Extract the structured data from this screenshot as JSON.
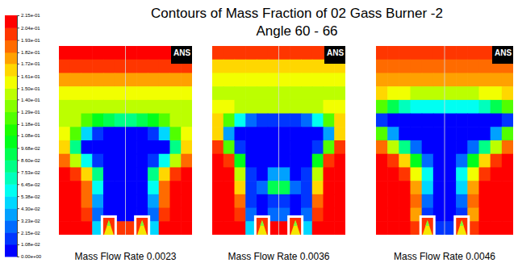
{
  "chart_data": {
    "type": "heatmap",
    "title": "Contours of Mass Fraction of 02 Gass Burner -2",
    "subtitle": "Angle 60 - 66",
    "tick_labels": false,
    "colorbar": {
      "range": [
        0,
        0.215
      ],
      "ticks": [
        {
          "value": 0,
          "label": "0.00e+00"
        },
        {
          "value": 0.0108,
          "label": "1.08e-02"
        },
        {
          "value": 0.0215,
          "label": "2.15e-02"
        },
        {
          "value": 0.0323,
          "label": "3.23e-02"
        },
        {
          "value": 0.043,
          "label": "4.30e-02"
        },
        {
          "value": 0.0538,
          "label": "5.38e-02"
        },
        {
          "value": 0.0645,
          "label": "6.45e-02"
        },
        {
          "value": 0.0753,
          "label": "7.53e-02"
        },
        {
          "value": 0.086,
          "label": "8.60e-02"
        },
        {
          "value": 0.0968,
          "label": "9.68e-02"
        },
        {
          "value": 0.108,
          "label": "1.08e-01"
        },
        {
          "value": 0.118,
          "label": "1.18e-01"
        },
        {
          "value": 0.129,
          "label": "1.29e-01"
        },
        {
          "value": 0.14,
          "label": "1.40e-01"
        },
        {
          "value": 0.15,
          "label": "1.50e-01"
        },
        {
          "value": 0.161,
          "label": "1.61e-01"
        },
        {
          "value": 0.172,
          "label": "1.72e-01"
        },
        {
          "value": 0.182,
          "label": "1.82e-01"
        },
        {
          "value": 0.193,
          "label": "1.93e-01"
        },
        {
          "value": 0.204,
          "label": "2.04e-01"
        },
        {
          "value": 0.215,
          "label": "2.15e-01"
        }
      ]
    },
    "panels": [
      {
        "caption": "Mass Flow Rate 0.0023",
        "logo": "ANS",
        "cells": [
          [
            0.21,
            0.21,
            0.21,
            0.21,
            0.21,
            0.21,
            0.21,
            0.21,
            0.21,
            0.21,
            0.21,
            0.21
          ],
          [
            0.195,
            0.195,
            0.195,
            0.195,
            0.195,
            0.195,
            0.195,
            0.195,
            0.195,
            0.195,
            0.195,
            0.195
          ],
          [
            0.175,
            0.175,
            0.175,
            0.175,
            0.175,
            0.175,
            0.175,
            0.175,
            0.175,
            0.175,
            0.175,
            0.175
          ],
          [
            0.16,
            0.16,
            0.16,
            0.16,
            0.16,
            0.16,
            0.16,
            0.16,
            0.16,
            0.16,
            0.16,
            0.16
          ],
          [
            0.15,
            0.15,
            0.145,
            0.14,
            0.14,
            0.14,
            0.14,
            0.14,
            0.14,
            0.145,
            0.15,
            0.15
          ],
          [
            0.15,
            0.14,
            0.12,
            0.1,
            0.09,
            0.08,
            0.08,
            0.09,
            0.1,
            0.12,
            0.14,
            0.15
          ],
          [
            0.16,
            0.12,
            0.05,
            0.02,
            0.01,
            0.01,
            0.01,
            0.01,
            0.02,
            0.05,
            0.12,
            0.16
          ],
          [
            0.17,
            0.08,
            0.01,
            0,
            0,
            0,
            0,
            0,
            0,
            0.01,
            0.08,
            0.17
          ],
          [
            0.19,
            0.14,
            0.06,
            0.02,
            0,
            0,
            0,
            0,
            0.02,
            0.06,
            0.14,
            0.19
          ],
          [
            0.21,
            0.2,
            0.17,
            0.08,
            0.01,
            0,
            0,
            0.01,
            0.08,
            0.17,
            0.2,
            0.21
          ],
          [
            0.21,
            0.21,
            0.19,
            0.06,
            0,
            0,
            0,
            0,
            0.06,
            0.19,
            0.21,
            0.21
          ],
          [
            0.21,
            0.21,
            0.19,
            0.04,
            0,
            0,
            0,
            0,
            0.04,
            0.19,
            0.21,
            0.21
          ],
          [
            0.21,
            0.21,
            0.2,
            0.03,
            0,
            0.01,
            0.01,
            0,
            0.03,
            0.2,
            0.21,
            0.21
          ],
          [
            0.21,
            0.21,
            0.21,
            0.05,
            0.02,
            0.2,
            0.2,
            0.02,
            0.05,
            0.21,
            0.21,
            0.21
          ]
        ]
      },
      {
        "caption": "Mass Flow Rate 0.0036",
        "logo": "ANS",
        "cells": [
          [
            0.2,
            0.2,
            0.2,
            0.2,
            0.2,
            0.2,
            0.2,
            0.2,
            0.2,
            0.2,
            0.2,
            0.2
          ],
          [
            0.17,
            0.17,
            0.17,
            0.17,
            0.17,
            0.17,
            0.17,
            0.17,
            0.17,
            0.17,
            0.17,
            0.17
          ],
          [
            0.155,
            0.155,
            0.155,
            0.155,
            0.155,
            0.155,
            0.155,
            0.155,
            0.155,
            0.155,
            0.155,
            0.155
          ],
          [
            0.15,
            0.15,
            0.15,
            0.15,
            0.15,
            0.15,
            0.15,
            0.15,
            0.15,
            0.15,
            0.15,
            0.15
          ],
          [
            0.16,
            0.155,
            0.15,
            0.15,
            0.15,
            0.15,
            0.15,
            0.15,
            0.15,
            0.15,
            0.155,
            0.16
          ],
          [
            0.17,
            0.12,
            0.06,
            0.03,
            0.02,
            0.02,
            0.02,
            0.02,
            0.03,
            0.06,
            0.12,
            0.17
          ],
          [
            0.17,
            0.04,
            0,
            0,
            0,
            0,
            0,
            0,
            0,
            0,
            0.04,
            0.17
          ],
          [
            0.2,
            0.12,
            0.02,
            0,
            0,
            0,
            0,
            0,
            0,
            0.02,
            0.12,
            0.2
          ],
          [
            0.21,
            0.2,
            0.1,
            0.01,
            0,
            0,
            0,
            0,
            0.01,
            0.1,
            0.2,
            0.21
          ],
          [
            0.21,
            0.21,
            0.15,
            0.02,
            0,
            0.04,
            0.04,
            0,
            0.02,
            0.15,
            0.21,
            0.21
          ],
          [
            0.21,
            0.21,
            0.17,
            0.02,
            0.03,
            0.09,
            0.09,
            0.03,
            0.02,
            0.17,
            0.21,
            0.21
          ],
          [
            0.21,
            0.21,
            0.19,
            0.02,
            0.01,
            0.02,
            0.02,
            0.01,
            0.02,
            0.19,
            0.21,
            0.21
          ],
          [
            0.21,
            0.21,
            0.2,
            0.03,
            0,
            0.03,
            0.03,
            0,
            0.03,
            0.2,
            0.21,
            0.21
          ],
          [
            0.21,
            0.21,
            0.21,
            0.05,
            0.02,
            0.21,
            0.21,
            0.02,
            0.05,
            0.21,
            0.21,
            0.21
          ]
        ]
      },
      {
        "caption": "Mass Flow Rate 0.0046",
        "logo": "ANS",
        "cells": [
          [
            0.2,
            0.2,
            0.2,
            0.2,
            0.2,
            0.2,
            0.2,
            0.2,
            0.2,
            0.2,
            0.2,
            0.2
          ],
          [
            0.19,
            0.19,
            0.19,
            0.19,
            0.19,
            0.19,
            0.19,
            0.19,
            0.19,
            0.19,
            0.19,
            0.19
          ],
          [
            0.18,
            0.18,
            0.18,
            0.18,
            0.18,
            0.18,
            0.18,
            0.18,
            0.18,
            0.18,
            0.18,
            0.18
          ],
          [
            0.165,
            0.16,
            0.155,
            0.15,
            0.15,
            0.15,
            0.15,
            0.15,
            0.15,
            0.155,
            0.16,
            0.165
          ],
          [
            0.12,
            0.09,
            0.07,
            0.06,
            0.06,
            0.06,
            0.06,
            0.06,
            0.06,
            0.07,
            0.09,
            0.12
          ],
          [
            0.02,
            0,
            0,
            0,
            0,
            0,
            0,
            0,
            0,
            0,
            0,
            0.02
          ],
          [
            0.12,
            0.04,
            0.01,
            0,
            0,
            0,
            0,
            0,
            0,
            0.01,
            0.04,
            0.12
          ],
          [
            0.19,
            0.15,
            0.08,
            0.03,
            0.01,
            0,
            0,
            0.01,
            0.03,
            0.08,
            0.15,
            0.19
          ],
          [
            0.21,
            0.2,
            0.17,
            0.1,
            0.03,
            0,
            0,
            0.03,
            0.1,
            0.17,
            0.2,
            0.21
          ],
          [
            0.21,
            0.21,
            0.2,
            0.16,
            0.06,
            0.01,
            0.01,
            0.06,
            0.16,
            0.2,
            0.21,
            0.21
          ],
          [
            0.21,
            0.21,
            0.21,
            0.18,
            0.05,
            0,
            0,
            0.05,
            0.18,
            0.21,
            0.21,
            0.21
          ],
          [
            0.21,
            0.21,
            0.21,
            0.19,
            0.03,
            0,
            0,
            0.03,
            0.19,
            0.21,
            0.21,
            0.21
          ],
          [
            0.21,
            0.21,
            0.21,
            0.18,
            0.02,
            0,
            0,
            0.02,
            0.18,
            0.21,
            0.21,
            0.21
          ],
          [
            0.21,
            0.21,
            0.21,
            0.2,
            0.03,
            0.02,
            0.02,
            0.03,
            0.2,
            0.21,
            0.21,
            0.21
          ]
        ]
      }
    ]
  }
}
